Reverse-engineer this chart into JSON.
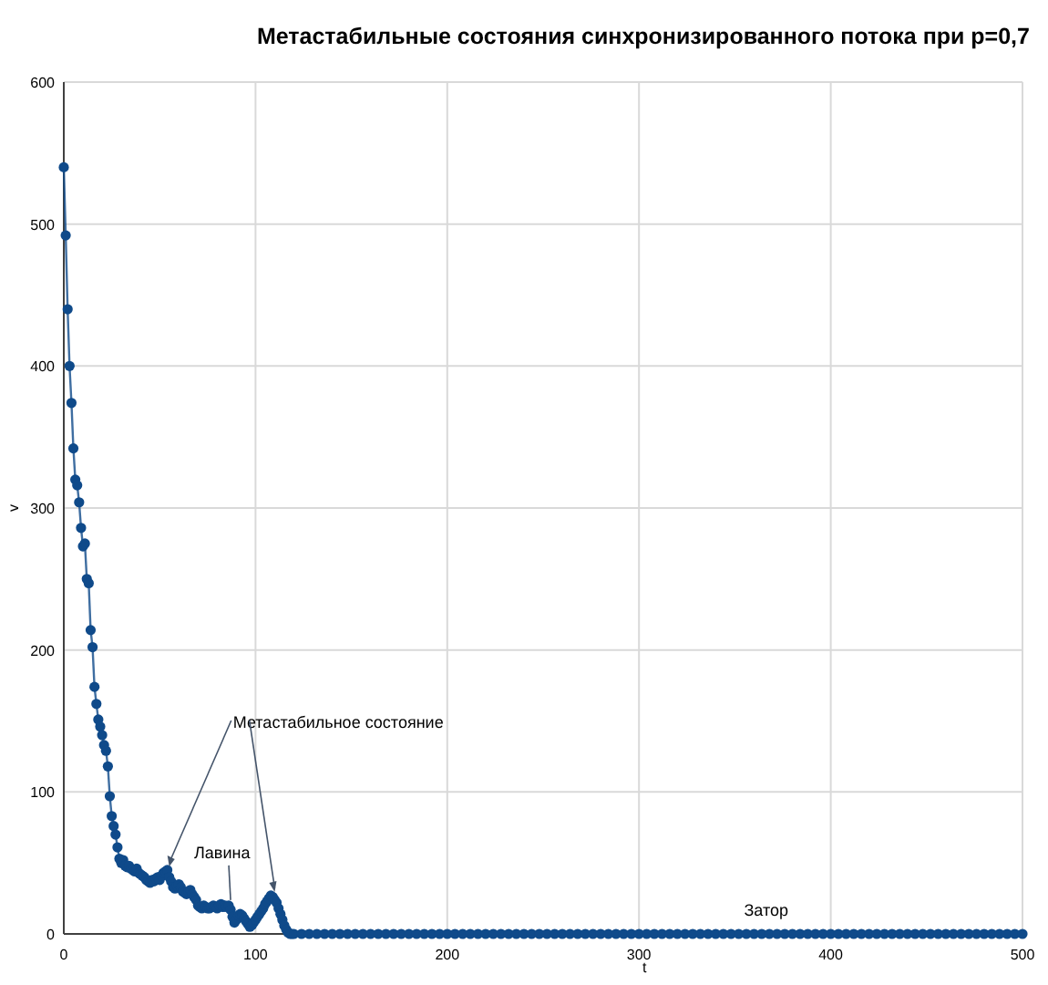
{
  "chart_data": {
    "type": "line",
    "title": "Метастабильные состояния синхронизированного потока при p=0,7",
    "xlabel": "t",
    "ylabel": "v",
    "x": [
      0,
      1,
      2,
      3,
      4,
      5,
      6,
      7,
      8,
      9,
      10,
      11,
      12,
      13,
      14,
      15,
      16,
      17,
      18,
      19,
      20,
      21,
      22,
      23,
      24,
      25,
      26,
      27,
      28,
      29,
      30,
      31,
      32,
      33,
      34,
      35,
      36,
      37,
      38,
      39,
      40,
      41,
      42,
      43,
      44,
      45,
      46,
      47,
      48,
      49,
      50,
      51,
      52,
      53,
      54,
      55,
      56,
      57,
      58,
      59,
      60,
      61,
      62,
      63,
      64,
      65,
      66,
      67,
      68,
      69,
      70,
      71,
      72,
      73,
      74,
      75,
      76,
      77,
      78,
      79,
      80,
      81,
      82,
      83,
      84,
      85,
      86,
      87,
      88,
      89,
      90,
      91,
      92,
      93,
      94,
      95,
      96,
      97,
      98,
      99,
      100,
      101,
      102,
      103,
      104,
      105,
      106,
      107,
      108,
      109,
      110,
      111,
      112,
      113,
      114,
      115,
      116,
      117,
      118,
      119,
      120,
      124,
      128,
      132,
      136,
      140,
      144,
      148,
      152,
      156,
      160,
      164,
      168,
      172,
      176,
      180,
      184,
      188,
      192,
      196,
      200,
      204,
      208,
      212,
      216,
      220,
      224,
      228,
      232,
      236,
      240,
      244,
      248,
      252,
      256,
      260,
      264,
      268,
      272,
      276,
      280,
      284,
      288,
      292,
      296,
      300,
      304,
      308,
      312,
      316,
      320,
      324,
      328,
      332,
      336,
      340,
      344,
      348,
      352,
      356,
      360,
      364,
      368,
      372,
      376,
      380,
      384,
      388,
      392,
      396,
      400,
      404,
      408,
      412,
      416,
      420,
      424,
      428,
      432,
      436,
      440,
      444,
      448,
      452,
      456,
      460,
      464,
      468,
      472,
      476,
      480,
      484,
      488,
      492,
      496,
      500
    ],
    "series": [
      {
        "color": "#0f4a8a",
        "values": [
          540,
          492,
          440,
          400,
          374,
          342,
          320,
          316,
          304,
          286,
          273,
          275,
          250,
          247,
          214,
          202,
          174,
          162,
          151,
          146,
          140,
          133,
          129,
          118,
          97,
          83,
          76,
          70,
          61,
          53,
          50,
          52,
          48,
          47,
          48,
          46,
          45,
          44,
          46,
          43,
          42,
          41,
          40,
          38,
          37,
          36,
          38,
          37,
          39,
          40,
          38,
          41,
          43,
          44,
          45,
          40,
          37,
          33,
          32,
          34,
          35,
          33,
          30,
          29,
          28,
          30,
          31,
          28,
          26,
          24,
          20,
          19,
          18,
          20,
          19,
          18,
          18,
          19,
          20,
          19,
          18,
          20,
          21,
          19,
          20,
          19,
          20,
          17,
          12,
          8,
          10,
          13,
          14,
          13,
          11,
          9,
          7,
          5,
          6,
          8,
          10,
          12,
          14,
          16,
          18,
          21,
          23,
          25,
          27,
          26,
          24,
          22,
          18,
          14,
          10,
          6,
          3,
          1,
          0,
          0,
          0,
          0,
          0,
          0,
          0,
          0,
          0,
          0,
          0,
          0,
          0,
          0,
          0,
          0,
          0,
          0,
          0,
          0,
          0,
          0,
          0,
          0,
          0,
          0,
          0,
          0,
          0,
          0,
          0,
          0,
          0,
          0,
          0,
          0,
          0,
          0,
          0,
          0,
          0,
          0,
          0,
          0,
          0,
          0,
          0,
          0,
          0,
          0,
          0,
          0,
          0,
          0,
          0,
          0,
          0,
          0,
          0,
          0,
          0,
          0,
          0,
          0,
          0,
          0,
          0,
          0,
          0,
          0,
          0,
          0,
          0,
          0,
          0,
          0,
          0,
          0,
          0,
          0,
          0,
          0,
          0,
          0,
          0,
          0,
          0,
          0,
          0,
          0,
          0,
          0,
          0,
          0,
          0,
          0,
          0,
          0
        ]
      }
    ],
    "xlim": [
      0,
      500
    ],
    "xticks": [
      0,
      100,
      200,
      300,
      400,
      500
    ],
    "ylim": [
      0,
      600
    ],
    "yticks": [
      0,
      100,
      200,
      300,
      400,
      500,
      600
    ],
    "grid": true,
    "marker": "circle",
    "line_style": "solid",
    "annotations": [
      {
        "text": "Метастабильное состояние",
        "x": 55,
        "y": 45
      },
      {
        "text": "Лавина",
        "x": 87,
        "y": 20
      },
      "Затор"
    ]
  }
}
